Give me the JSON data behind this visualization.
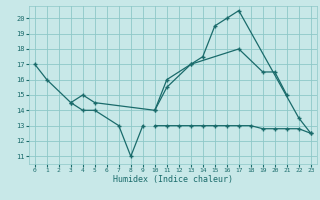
{
  "xlabel": "Humidex (Indice chaleur)",
  "bg_color": "#c8e8e8",
  "grid_color": "#8ec8c8",
  "line_color": "#1a6b6b",
  "xlim": [
    -0.5,
    23.5
  ],
  "ylim": [
    10.5,
    20.8
  ],
  "yticks": [
    11,
    12,
    13,
    14,
    15,
    16,
    17,
    18,
    19,
    20
  ],
  "xticks": [
    0,
    1,
    2,
    3,
    4,
    5,
    6,
    7,
    8,
    9,
    10,
    11,
    12,
    13,
    14,
    15,
    16,
    17,
    18,
    19,
    20,
    21,
    22,
    23
  ],
  "series1_x": [
    0,
    1,
    3,
    4,
    5,
    7,
    8,
    9
  ],
  "series1_y": [
    17,
    16,
    14.5,
    14,
    14,
    13,
    11,
    13
  ],
  "series2_x": [
    3,
    4,
    5,
    10,
    11,
    13,
    17,
    19,
    20,
    21
  ],
  "series2_y": [
    14.5,
    15,
    14.5,
    14,
    16,
    17,
    18,
    16.5,
    16.5,
    15
  ],
  "series3_x": [
    10,
    11,
    13,
    14,
    15,
    16,
    17,
    22,
    23
  ],
  "series3_y": [
    14,
    15.5,
    17,
    17.5,
    19.5,
    20,
    20.5,
    13.5,
    12.5
  ],
  "series4_x": [
    10,
    11,
    12,
    13,
    14,
    15,
    16,
    17,
    18,
    19,
    20,
    21,
    22,
    23
  ],
  "series4_y": [
    13,
    13,
    13,
    13,
    13,
    13,
    13,
    13,
    13,
    12.8,
    12.8,
    12.8,
    12.8,
    12.5
  ]
}
